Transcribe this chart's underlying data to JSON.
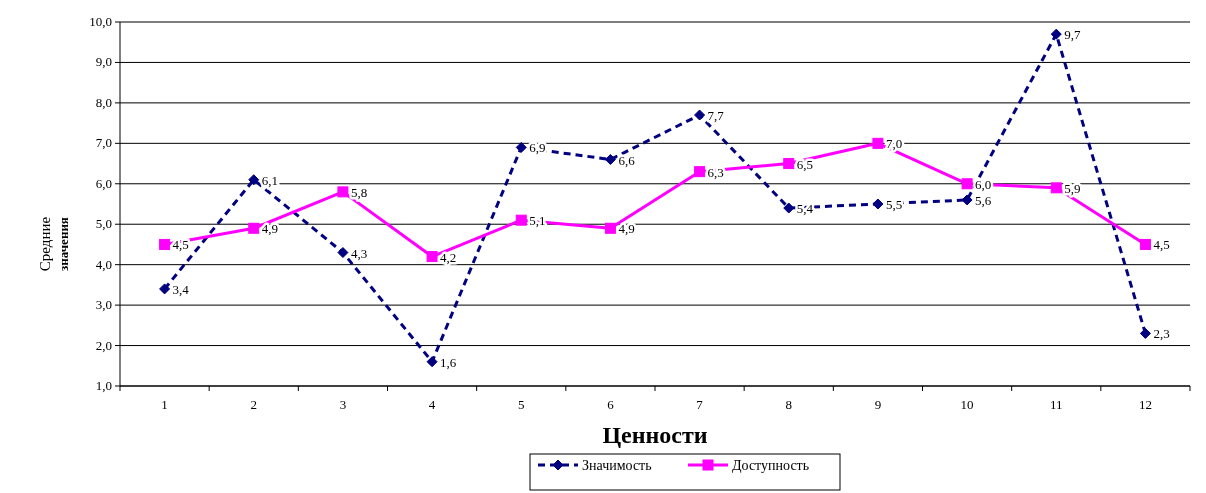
{
  "chart_data": {
    "type": "line",
    "xlabel": "Ценности",
    "ylabel": "Средние значения",
    "categories": [
      "1",
      "2",
      "3",
      "4",
      "5",
      "6",
      "7",
      "8",
      "9",
      "10",
      "11",
      "12"
    ],
    "series": [
      {
        "name": "Значимость",
        "color": "#000080",
        "marker": "diamond",
        "line_style": "dashed",
        "values": [
          3.4,
          6.1,
          4.3,
          1.6,
          6.9,
          6.6,
          7.7,
          5.4,
          5.5,
          5.6,
          9.7,
          2.3
        ],
        "value_labels": [
          "3,4",
          "6,1",
          "4,3",
          "1,6",
          "6,9",
          "6,6",
          "7,7",
          "5,4",
          "5,5",
          "5,6",
          "9,7",
          "2,3"
        ]
      },
      {
        "name": "Доступность",
        "color": "#ff00ff",
        "marker": "square",
        "line_style": "solid",
        "values": [
          4.5,
          4.9,
          5.8,
          4.2,
          5.1,
          4.9,
          6.3,
          6.5,
          7.0,
          6.0,
          5.9,
          4.5
        ],
        "value_labels": [
          "4,5",
          "4,9",
          "5,8",
          "4,2",
          "5,1",
          "4,9",
          "6,3",
          "6,5",
          "7,0",
          "6,0",
          "5,9",
          "4,5"
        ]
      }
    ],
    "ylim": [
      1,
      10
    ],
    "yticks": [
      {
        "value": 1,
        "label": "1,0"
      },
      {
        "value": 2,
        "label": "2,0"
      },
      {
        "value": 3,
        "label": "3,0"
      },
      {
        "value": 4,
        "label": "4,0"
      },
      {
        "value": 5,
        "label": "5,0"
      },
      {
        "value": 6,
        "label": "6,0"
      },
      {
        "value": 7,
        "label": "7,0"
      },
      {
        "value": 8,
        "label": "8,0"
      },
      {
        "value": 9,
        "label": "9,0"
      },
      {
        "value": 10,
        "label": "10,0"
      }
    ],
    "grid": "y",
    "legend": "bottom"
  }
}
